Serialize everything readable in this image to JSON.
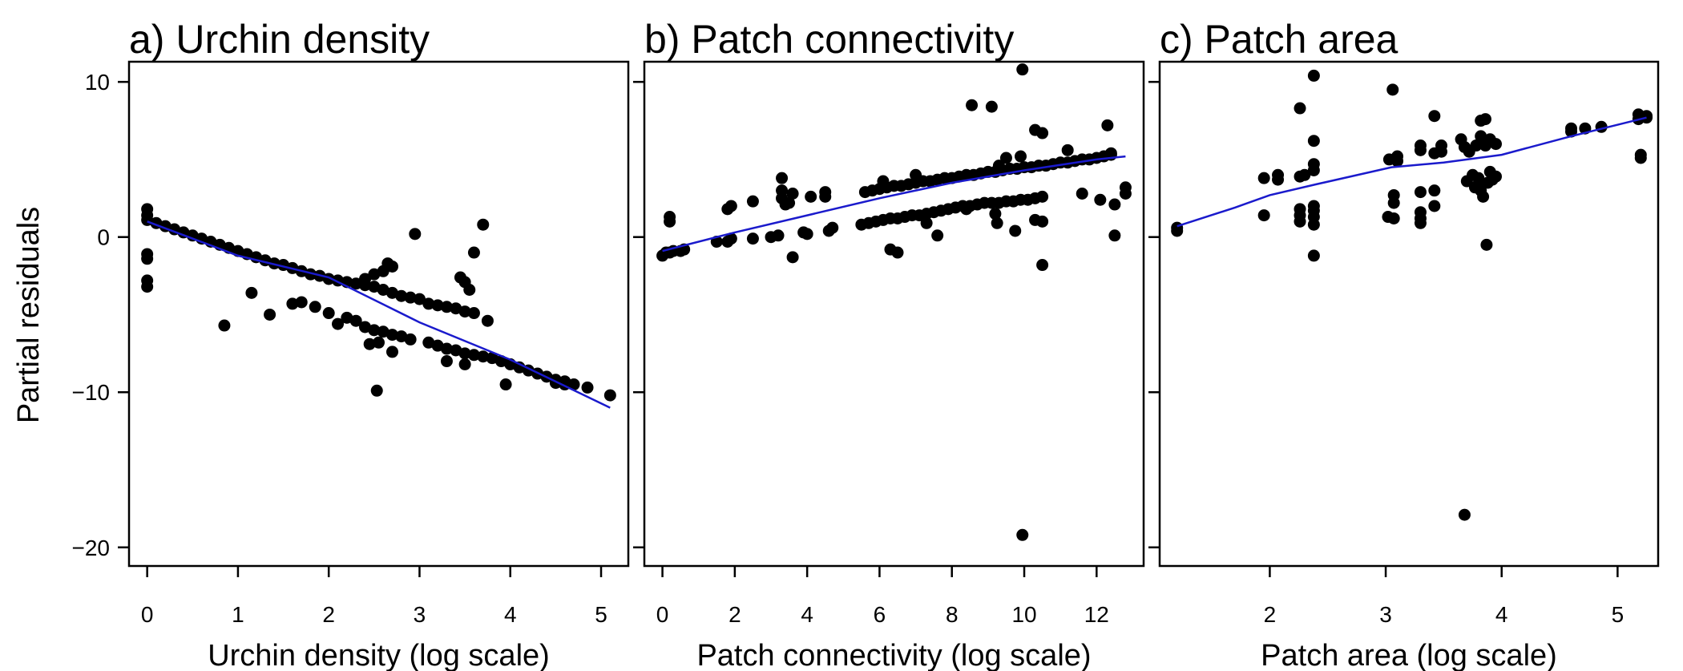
{
  "figure": {
    "ylabel": "Partial residuals",
    "ylim": [
      -21.2,
      11.3
    ],
    "yticks": [
      -20,
      -10,
      0,
      10
    ],
    "point_color": "#000000",
    "fit_color": "#1a1acc"
  },
  "chart_data": [
    {
      "type": "scatter",
      "title": "a) Urchin density",
      "xlabel": "Urchin density (log scale)",
      "ylabel": "Partial residuals",
      "xlim": [
        -0.2,
        5.3
      ],
      "ylim": [
        -21.2,
        11.3
      ],
      "xticks": [
        0,
        1,
        2,
        3,
        4,
        5
      ],
      "yticks": [
        -20,
        -10,
        0,
        10
      ],
      "grid": false,
      "points": [
        [
          0,
          1.8
        ],
        [
          0,
          1.4
        ],
        [
          0,
          1.1
        ],
        [
          0,
          -1.1
        ],
        [
          0,
          -1.4
        ],
        [
          0,
          -2.8
        ],
        [
          0,
          -3.2
        ],
        [
          0.1,
          0.9
        ],
        [
          0.2,
          0.7
        ],
        [
          0.3,
          0.5
        ],
        [
          0.4,
          0.3
        ],
        [
          0.5,
          0.1
        ],
        [
          0.6,
          -0.1
        ],
        [
          0.7,
          -0.3
        ],
        [
          0.8,
          -0.5
        ],
        [
          0.9,
          -0.7
        ],
        [
          1.0,
          -0.9
        ],
        [
          1.1,
          -1.1
        ],
        [
          1.2,
          -1.3
        ],
        [
          1.3,
          -1.5
        ],
        [
          1.4,
          -1.7
        ],
        [
          1.5,
          -1.8
        ],
        [
          1.6,
          -2.0
        ],
        [
          1.7,
          -2.2
        ],
        [
          1.8,
          -2.4
        ],
        [
          1.9,
          -2.5
        ],
        [
          2.0,
          -2.7
        ],
        [
          2.1,
          -2.8
        ],
        [
          2.2,
          -2.9
        ],
        [
          2.3,
          -3.0
        ],
        [
          2.4,
          -3.1
        ],
        [
          2.5,
          -3.2
        ],
        [
          2.6,
          -3.4
        ],
        [
          2.7,
          -3.6
        ],
        [
          2.8,
          -3.8
        ],
        [
          2.9,
          -3.9
        ],
        [
          3.0,
          -4.0
        ],
        [
          3.1,
          -4.3
        ],
        [
          3.2,
          -4.4
        ],
        [
          3.3,
          -4.5
        ],
        [
          3.4,
          -4.6
        ],
        [
          3.5,
          -4.8
        ],
        [
          3.6,
          -4.9
        ],
        [
          2.4,
          -2.7
        ],
        [
          2.5,
          -2.4
        ],
        [
          2.6,
          -2.2
        ],
        [
          2.7,
          -1.9
        ],
        [
          2.65,
          -1.7
        ],
        [
          2.95,
          0.2
        ],
        [
          3.45,
          -2.6
        ],
        [
          3.5,
          -2.9
        ],
        [
          3.55,
          -3.4
        ],
        [
          3.7,
          0.8
        ],
        [
          3.6,
          -1.0
        ],
        [
          3.75,
          -5.4
        ],
        [
          0.85,
          -5.7
        ],
        [
          1.15,
          -3.6
        ],
        [
          1.35,
          -5.0
        ],
        [
          1.6,
          -4.3
        ],
        [
          1.7,
          -4.2
        ],
        [
          1.85,
          -4.5
        ],
        [
          2.0,
          -4.9
        ],
        [
          2.1,
          -5.6
        ],
        [
          2.2,
          -5.2
        ],
        [
          2.3,
          -5.4
        ],
        [
          2.4,
          -5.8
        ],
        [
          2.5,
          -6.0
        ],
        [
          2.6,
          -6.1
        ],
        [
          2.7,
          -6.3
        ],
        [
          2.8,
          -6.4
        ],
        [
          2.9,
          -6.6
        ],
        [
          2.45,
          -6.9
        ],
        [
          2.55,
          -6.8
        ],
        [
          2.7,
          -7.4
        ],
        [
          2.53,
          -9.9
        ],
        [
          3.1,
          -6.8
        ],
        [
          3.2,
          -7.0
        ],
        [
          3.3,
          -7.2
        ],
        [
          3.4,
          -7.3
        ],
        [
          3.5,
          -7.5
        ],
        [
          3.6,
          -7.6
        ],
        [
          3.7,
          -7.7
        ],
        [
          3.8,
          -7.8
        ],
        [
          3.9,
          -8.0
        ],
        [
          4.0,
          -8.2
        ],
        [
          4.1,
          -8.4
        ],
        [
          4.2,
          -8.6
        ],
        [
          4.3,
          -8.8
        ],
        [
          4.4,
          -9.0
        ],
        [
          4.5,
          -9.2
        ],
        [
          4.6,
          -9.3
        ],
        [
          4.7,
          -9.5
        ],
        [
          4.85,
          -9.7
        ],
        [
          5.1,
          -10.2
        ],
        [
          3.3,
          -8.0
        ],
        [
          3.5,
          -8.2
        ],
        [
          3.95,
          -9.5
        ],
        [
          4.5,
          -9.4
        ],
        [
          4.6,
          -9.5
        ]
      ],
      "fit_line": [
        [
          0,
          1.0
        ],
        [
          1,
          -1.2
        ],
        [
          2,
          -2.6
        ],
        [
          3,
          -5.5
        ],
        [
          4,
          -7.9
        ],
        [
          5.1,
          -11.0
        ]
      ]
    },
    {
      "type": "scatter",
      "title": "b) Patch connectivity",
      "xlabel": "Patch connectivity (log scale)",
      "ylabel": "Partial residuals",
      "xlim": [
        -0.5,
        13.3
      ],
      "ylim": [
        -21.2,
        11.3
      ],
      "xticks": [
        0,
        2,
        4,
        6,
        8,
        10,
        12
      ],
      "yticks": [
        -20,
        -10,
        0,
        10
      ],
      "grid": false,
      "points": [
        [
          0,
          -1.2
        ],
        [
          0.1,
          -1.0
        ],
        [
          0.2,
          -1.0
        ],
        [
          0.3,
          -0.9
        ],
        [
          0.5,
          -0.9
        ],
        [
          0.6,
          -0.8
        ],
        [
          0.2,
          1.3
        ],
        [
          0.2,
          1.0
        ],
        [
          1.5,
          -0.3
        ],
        [
          1.8,
          -0.3
        ],
        [
          1.9,
          -0.1
        ],
        [
          1.8,
          1.8
        ],
        [
          1.9,
          2.0
        ],
        [
          2.5,
          2.3
        ],
        [
          2.5,
          -0.1
        ],
        [
          3.0,
          0.0
        ],
        [
          3.2,
          0.1
        ],
        [
          3.3,
          3.8
        ],
        [
          3.3,
          3.0
        ],
        [
          3.3,
          2.5
        ],
        [
          3.4,
          2.1
        ],
        [
          3.5,
          2.2
        ],
        [
          3.6,
          2.8
        ],
        [
          3.6,
          -1.3
        ],
        [
          3.9,
          0.3
        ],
        [
          4.0,
          0.2
        ],
        [
          4.1,
          2.6
        ],
        [
          4.5,
          2.6
        ],
        [
          4.5,
          2.9
        ],
        [
          4.6,
          0.4
        ],
        [
          4.7,
          0.6
        ],
        [
          5.5,
          0.8
        ],
        [
          5.7,
          0.9
        ],
        [
          5.9,
          1.0
        ],
        [
          6.1,
          1.1
        ],
        [
          6.3,
          1.2
        ],
        [
          6.5,
          1.2
        ],
        [
          6.7,
          1.3
        ],
        [
          6.9,
          1.4
        ],
        [
          7.1,
          1.4
        ],
        [
          7.3,
          1.5
        ],
        [
          7.5,
          1.6
        ],
        [
          7.7,
          1.7
        ],
        [
          7.9,
          1.8
        ],
        [
          8.1,
          1.9
        ],
        [
          8.3,
          2.0
        ],
        [
          8.5,
          2.0
        ],
        [
          8.7,
          2.1
        ],
        [
          8.9,
          2.2
        ],
        [
          9.1,
          2.2
        ],
        [
          9.3,
          2.2
        ],
        [
          9.5,
          2.3
        ],
        [
          9.7,
          2.3
        ],
        [
          9.9,
          2.4
        ],
        [
          10.1,
          2.4
        ],
        [
          10.3,
          2.5
        ],
        [
          10.5,
          2.6
        ],
        [
          5.6,
          2.9
        ],
        [
          5.8,
          3.0
        ],
        [
          6.0,
          3.1
        ],
        [
          6.2,
          3.2
        ],
        [
          6.4,
          3.3
        ],
        [
          6.6,
          3.3
        ],
        [
          6.8,
          3.4
        ],
        [
          7.0,
          3.5
        ],
        [
          7.2,
          3.6
        ],
        [
          7.4,
          3.6
        ],
        [
          7.6,
          3.7
        ],
        [
          7.8,
          3.8
        ],
        [
          8.0,
          3.8
        ],
        [
          8.2,
          3.9
        ],
        [
          8.4,
          4.0
        ],
        [
          8.6,
          4.0
        ],
        [
          8.8,
          4.1
        ],
        [
          9.0,
          4.2
        ],
        [
          9.2,
          4.2
        ],
        [
          9.4,
          4.3
        ],
        [
          9.6,
          4.4
        ],
        [
          9.8,
          4.4
        ],
        [
          10.0,
          4.5
        ],
        [
          10.2,
          4.5
        ],
        [
          10.4,
          4.6
        ],
        [
          10.6,
          4.6
        ],
        [
          10.8,
          4.7
        ],
        [
          11.0,
          4.8
        ],
        [
          11.2,
          4.8
        ],
        [
          11.4,
          4.9
        ],
        [
          11.6,
          5.0
        ],
        [
          11.8,
          5.0
        ],
        [
          12.0,
          5.1
        ],
        [
          12.2,
          5.2
        ],
        [
          12.4,
          5.3
        ],
        [
          6.1,
          3.6
        ],
        [
          6.3,
          -0.8
        ],
        [
          6.5,
          -1.0
        ],
        [
          7.0,
          4.0
        ],
        [
          7.3,
          0.9
        ],
        [
          7.6,
          0.1
        ],
        [
          8.4,
          1.8
        ],
        [
          8.55,
          8.5
        ],
        [
          9.1,
          8.4
        ],
        [
          9.2,
          1.5
        ],
        [
          9.3,
          4.6
        ],
        [
          9.5,
          5.1
        ],
        [
          9.25,
          0.9
        ],
        [
          9.75,
          0.4
        ],
        [
          9.95,
          10.8
        ],
        [
          9.9,
          5.2
        ],
        [
          10.3,
          6.9
        ],
        [
          10.3,
          1.1
        ],
        [
          10.5,
          6.7
        ],
        [
          10.5,
          1.0
        ],
        [
          10.5,
          -1.8
        ],
        [
          11.2,
          5.6
        ],
        [
          11.6,
          2.8
        ],
        [
          12.1,
          2.4
        ],
        [
          12.3,
          7.2
        ],
        [
          12.4,
          5.4
        ],
        [
          12.5,
          0.1
        ],
        [
          12.5,
          2.1
        ],
        [
          12.8,
          3.2
        ],
        [
          12.8,
          2.8
        ],
        [
          9.95,
          -19.2
        ]
      ],
      "fit_line": [
        [
          0,
          -0.9
        ],
        [
          2,
          0.3
        ],
        [
          4,
          1.4
        ],
        [
          6,
          2.5
        ],
        [
          8,
          3.5
        ],
        [
          10,
          4.3
        ],
        [
          12,
          5.0
        ],
        [
          12.8,
          5.2
        ]
      ]
    },
    {
      "type": "scatter",
      "title": "c) Patch area",
      "xlabel": "Patch area (log scale)",
      "ylabel": "Partial residuals",
      "xlim": [
        1.05,
        5.35
      ],
      "ylim": [
        -21.2,
        11.3
      ],
      "xticks": [
        2,
        3,
        4,
        5
      ],
      "yticks": [
        -20,
        -10,
        0,
        10
      ],
      "grid": false,
      "points": [
        [
          1.2,
          0.6
        ],
        [
          1.2,
          0.4
        ],
        [
          1.95,
          1.4
        ],
        [
          1.95,
          3.8
        ],
        [
          2.07,
          3.7
        ],
        [
          2.07,
          4.0
        ],
        [
          2.26,
          8.3
        ],
        [
          2.26,
          3.9
        ],
        [
          2.26,
          1.8
        ],
        [
          2.26,
          1.4
        ],
        [
          2.26,
          1.0
        ],
        [
          2.3,
          4.0
        ],
        [
          2.38,
          10.4
        ],
        [
          2.38,
          6.2
        ],
        [
          2.38,
          4.7
        ],
        [
          2.38,
          4.3
        ],
        [
          2.38,
          2.0
        ],
        [
          2.38,
          1.7
        ],
        [
          2.38,
          1.3
        ],
        [
          2.38,
          0.8
        ],
        [
          2.38,
          -1.2
        ],
        [
          3.02,
          1.3
        ],
        [
          3.03,
          5.0
        ],
        [
          3.06,
          9.5
        ],
        [
          3.07,
          2.7
        ],
        [
          3.07,
          2.2
        ],
        [
          3.07,
          1.2
        ],
        [
          3.1,
          4.9
        ],
        [
          3.1,
          5.2
        ],
        [
          3.3,
          5.6
        ],
        [
          3.3,
          2.9
        ],
        [
          3.3,
          1.6
        ],
        [
          3.3,
          0.9
        ],
        [
          3.3,
          5.9
        ],
        [
          3.3,
          1.2
        ],
        [
          3.42,
          7.8
        ],
        [
          3.42,
          5.4
        ],
        [
          3.42,
          3.0
        ],
        [
          3.42,
          2.0
        ],
        [
          3.48,
          5.5
        ],
        [
          3.48,
          5.9
        ],
        [
          3.65,
          6.3
        ],
        [
          3.68,
          5.8
        ],
        [
          3.7,
          3.6
        ],
        [
          3.72,
          5.5
        ],
        [
          3.75,
          4.0
        ],
        [
          3.77,
          3.2
        ],
        [
          3.78,
          5.9
        ],
        [
          3.8,
          3.8
        ],
        [
          3.8,
          3.4
        ],
        [
          3.82,
          7.5
        ],
        [
          3.82,
          6.5
        ],
        [
          3.82,
          3.0
        ],
        [
          3.84,
          2.6
        ],
        [
          3.86,
          7.6
        ],
        [
          3.86,
          5.9
        ],
        [
          3.87,
          -0.5
        ],
        [
          3.88,
          3.5
        ],
        [
          3.9,
          4.2
        ],
        [
          3.9,
          6.3
        ],
        [
          3.92,
          3.7
        ],
        [
          3.95,
          6.0
        ],
        [
          3.95,
          3.9
        ],
        [
          3.68,
          -17.9
        ],
        [
          4.6,
          7.0
        ],
        [
          4.6,
          6.8
        ],
        [
          4.72,
          7.0
        ],
        [
          4.86,
          7.1
        ],
        [
          5.18,
          7.9
        ],
        [
          5.18,
          7.6
        ],
        [
          5.2,
          5.3
        ],
        [
          5.2,
          5.1
        ],
        [
          5.25,
          7.8
        ],
        [
          5.25,
          7.7
        ]
      ],
      "fit_line": [
        [
          1.2,
          0.7
        ],
        [
          1.7,
          1.9
        ],
        [
          2.0,
          2.7
        ],
        [
          2.4,
          3.4
        ],
        [
          3.05,
          4.5
        ],
        [
          3.5,
          4.8
        ],
        [
          4.0,
          5.3
        ],
        [
          4.6,
          6.5
        ],
        [
          5.25,
          7.7
        ]
      ]
    }
  ]
}
